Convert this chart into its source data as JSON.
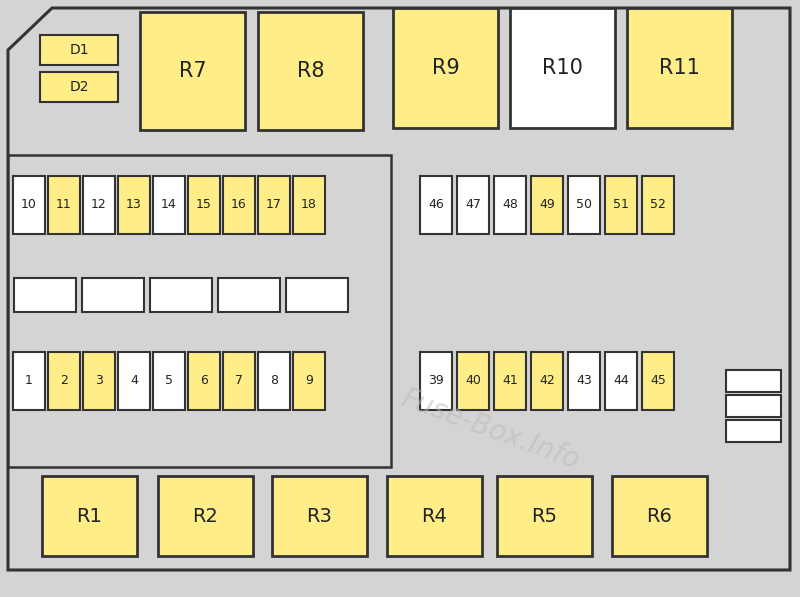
{
  "bg": "#d4d4d4",
  "yellow": "#FFEE88",
  "white": "#FFFFFF",
  "bdr": "#333333",
  "fuses_row1_labels": [
    "10",
    "11",
    "12",
    "13",
    "14",
    "15",
    "16",
    "17",
    "18"
  ],
  "fuses_row1_colors": [
    "#FFFFFF",
    "#FFEE88",
    "#FFFFFF",
    "#FFEE88",
    "#FFFFFF",
    "#FFEE88",
    "#FFEE88",
    "#FFEE88",
    "#FFEE88"
  ],
  "fuses_row2r_labels": [
    "46",
    "47",
    "48",
    "49",
    "50",
    "51",
    "52"
  ],
  "fuses_row2r_colors": [
    "#FFFFFF",
    "#FFFFFF",
    "#FFFFFF",
    "#FFEE88",
    "#FFFFFF",
    "#FFEE88",
    "#FFEE88"
  ],
  "fuses_row3_labels": [
    "1",
    "2",
    "3",
    "4",
    "5",
    "6",
    "7",
    "8",
    "9"
  ],
  "fuses_row3_colors": [
    "#FFFFFF",
    "#FFEE88",
    "#FFEE88",
    "#FFFFFF",
    "#FFFFFF",
    "#FFEE88",
    "#FFEE88",
    "#FFFFFF",
    "#FFEE88"
  ],
  "fuses_row4r_labels": [
    "39",
    "40",
    "41",
    "42",
    "43",
    "44",
    "45"
  ],
  "fuses_row4r_colors": [
    "#FFFFFF",
    "#FFEE88",
    "#FFEE88",
    "#FFEE88",
    "#FFFFFF",
    "#FFFFFF",
    "#FFEE88"
  ],
  "wm_text": "Fuse-Box.Info",
  "wm_color": "#bbbbbb",
  "wm_alpha": 0.55,
  "wm_rotation": -20,
  "wm_fontsize": 20
}
